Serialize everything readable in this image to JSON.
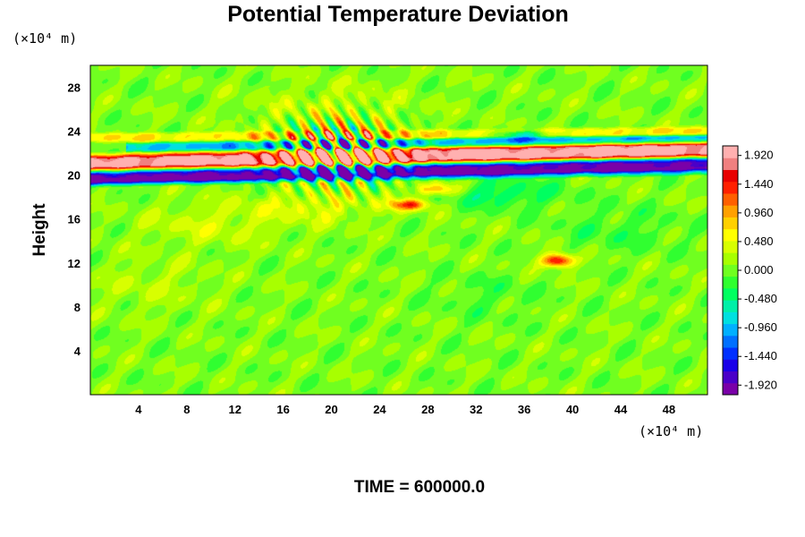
{
  "chart_data": {
    "type": "heatmap",
    "title": "Potential Temperature Deviation",
    "ylabel": "Height",
    "xlabel": "",
    "x_unit": "(×10⁴ m)",
    "y_unit": "(×10⁴ m)",
    "xlim": [
      0,
      51.2
    ],
    "ylim": [
      0,
      30
    ],
    "x_ticks": [
      4,
      8,
      12,
      16,
      20,
      24,
      28,
      32,
      36,
      40,
      44,
      48
    ],
    "y_ticks": [
      4,
      8,
      12,
      16,
      20,
      24,
      28
    ],
    "colorbar": {
      "range": [
        -2.08,
        2.08
      ],
      "tick_values": [
        1.92,
        1.44,
        0.96,
        0.48,
        0.0,
        -0.48,
        -0.96,
        -1.44,
        -1.92
      ],
      "tick_labels": [
        "1.920",
        "1.440",
        "0.960",
        "0.480",
        "0.000",
        "-0.480",
        "-0.960",
        "-1.440",
        "-1.920"
      ],
      "colors": [
        "#7a00a8",
        "#4b00c8",
        "#1a00e8",
        "#0030ff",
        "#0070ff",
        "#00b0ff",
        "#00e0e0",
        "#00f0a8",
        "#00ff60",
        "#30ff30",
        "#70ff20",
        "#a8ff00",
        "#d8ff00",
        "#ffff00",
        "#ffd000",
        "#ffa000",
        "#ff6000",
        "#ff2000",
        "#e80000",
        "#f08080",
        "#ffb0b0"
      ]
    },
    "background_value": 0.05,
    "features": [
      {
        "kind": "band",
        "x0": 0,
        "x1": 51.2,
        "y_start": 21.0,
        "y_end": 22.3,
        "half_width": 0.7,
        "value": 2.0
      },
      {
        "kind": "band",
        "x0": 0,
        "x1": 51.2,
        "y_start": 19.9,
        "y_end": 21.1,
        "half_width": 0.55,
        "value": -2.0
      },
      {
        "kind": "band",
        "x0": 3,
        "x1": 51.2,
        "y_start": 22.5,
        "y_end": 23.3,
        "half_width": 0.35,
        "value": -1.0
      },
      {
        "kind": "band",
        "x0": 0,
        "x1": 51.2,
        "y_start": 19.3,
        "y_end": 20.4,
        "half_width": 0.3,
        "value": -0.8
      },
      {
        "kind": "band",
        "x0": 0,
        "x1": 51.2,
        "y_start": 23.4,
        "y_end": 24.0,
        "half_width": 0.35,
        "value": 0.6
      },
      {
        "kind": "blob",
        "x": 38.8,
        "y": 12.2,
        "rx": 1.3,
        "ry": 0.6,
        "value": 1.7
      },
      {
        "kind": "blob",
        "x": 26.5,
        "y": 17.3,
        "rx": 1.6,
        "ry": 0.5,
        "value": 1.3
      },
      {
        "kind": "blob",
        "x": 28.8,
        "y": 18.7,
        "rx": 1.8,
        "ry": 0.6,
        "value": 1.0
      },
      {
        "kind": "blob",
        "x": 34,
        "y": 18.3,
        "rx": 5.0,
        "ry": 1.3,
        "value": -0.5
      },
      {
        "kind": "blob",
        "x": 19,
        "y": 17.2,
        "rx": 5.5,
        "ry": 1.5,
        "value": 0.4
      },
      {
        "kind": "blob",
        "x": 10,
        "y": 15.5,
        "rx": 6.0,
        "ry": 2.0,
        "value": 0.3
      },
      {
        "kind": "blob",
        "x": 36,
        "y": 23.7,
        "rx": 2.5,
        "ry": 0.4,
        "value": -1.2
      },
      {
        "kind": "blob",
        "x": 20,
        "y": 26.0,
        "rx": 7.0,
        "ry": 2.5,
        "value": 0.25
      },
      {
        "kind": "blob",
        "x": 44,
        "y": 15.0,
        "rx": 5.0,
        "ry": 2.0,
        "value": -0.25
      },
      {
        "kind": "blob",
        "x": 5,
        "y": 10.0,
        "rx": 5.0,
        "ry": 2.5,
        "value": 0.2
      },
      {
        "kind": "blob",
        "x": 33,
        "y": 9.0,
        "rx": 4.0,
        "ry": 2.0,
        "value": -0.2
      },
      {
        "kind": "wave",
        "x": 20.5,
        "y": 22.0,
        "rx": 5.5,
        "ry": 3.5,
        "wavelength": 1.6,
        "value": 2.0
      }
    ]
  },
  "footer": {
    "time_label": "TIME = 600000.0"
  }
}
